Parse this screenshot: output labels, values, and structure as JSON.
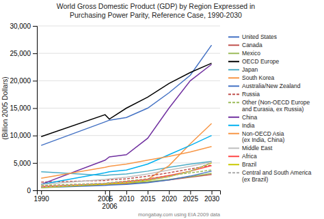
{
  "chart_data": {
    "type": "line",
    "title": "World Gross Domestic Product (GDP) by Region Expressed in\nPurchasing Power Parity, Reference Case, 1990-2030",
    "ylabel": "(Billion 2005 Dollars)",
    "annotations": [
      "mongabay.com using EIA 2009 data"
    ],
    "x": [
      1990,
      2005,
      2006,
      2010,
      2015,
      2020,
      2025,
      2030
    ],
    "series": [
      {
        "name": "United States",
        "color": "#4472C4",
        "line_style": "solid",
        "values": [
          8200,
          12500,
          12800,
          13300,
          15000,
          17800,
          21000,
          26500
        ]
      },
      {
        "name": "Canada",
        "color": "#C0504D",
        "line_style": "solid",
        "values": [
          650,
          1050,
          1100,
          1200,
          1500,
          1900,
          2400,
          2900
        ]
      },
      {
        "name": "Mexico",
        "color": "#9BBB59",
        "line_style": "solid",
        "values": [
          600,
          1100,
          1150,
          1300,
          1600,
          2000,
          2500,
          3100
        ]
      },
      {
        "name": "OECD Europe",
        "color": "#000000",
        "line_style": "solid",
        "values": [
          9800,
          13800,
          13000,
          15000,
          17000,
          19500,
          21500,
          23200
        ]
      },
      {
        "name": "Japan",
        "color": "#4BACC6",
        "line_style": "solid",
        "values": [
          3400,
          2700,
          2800,
          3000,
          3500,
          4200,
          4800,
          5300
        ]
      },
      {
        "name": "South Korea",
        "color": "#F79646",
        "line_style": "solid",
        "values": [
          550,
          1050,
          1100,
          1300,
          2000,
          4500,
          8500,
          12200
        ]
      },
      {
        "name": "Australia/New Zealand",
        "color": "#4472C4",
        "line_style": "solid",
        "values": [
          500,
          900,
          950,
          1100,
          1400,
          1900,
          2600,
          3500
        ]
      },
      {
        "name": "Russia",
        "color": "#C0504D",
        "line_style": "dashed",
        "values": [
          1500,
          1800,
          1900,
          2100,
          2600,
          3200,
          3900,
          4600
        ]
      },
      {
        "name": "Other (Non-OECD Europe\nand Eurasia, ex Russia)",
        "color": "#9BBB59",
        "line_style": "dashed",
        "values": [
          900,
          1300,
          1400,
          1700,
          2100,
          2700,
          3200,
          3700
        ]
      },
      {
        "name": "China",
        "color": "#7030A0",
        "line_style": "solid",
        "values": [
          1100,
          5500,
          6100,
          6500,
          9500,
          15000,
          20000,
          23000
        ]
      },
      {
        "name": "India",
        "color": "#00B0F0",
        "line_style": "solid",
        "values": [
          1100,
          3200,
          3400,
          3700,
          4800,
          6500,
          8200,
          10000
        ]
      },
      {
        "name": "Non-OECD Asia\n(ex India, China)",
        "color": "#F79646",
        "line_style": "solid",
        "values": [
          2200,
          4200,
          4400,
          4800,
          5500,
          6200,
          7000,
          8000
        ]
      },
      {
        "name": "Middle East",
        "color": "#BFBFBF",
        "line_style": "solid",
        "values": [
          1100,
          2000,
          2100,
          2400,
          3000,
          3700,
          4400,
          5200
        ]
      },
      {
        "name": "Africa",
        "color": "#FF4444",
        "line_style": "solid",
        "values": [
          700,
          1200,
          1300,
          1600,
          2000,
          2700,
          3500,
          4500
        ]
      },
      {
        "name": "Brazil",
        "color": "#C8C800",
        "line_style": "solid",
        "values": [
          500,
          1150,
          1200,
          1400,
          1800,
          2500,
          3500,
          5000
        ]
      },
      {
        "name": "Central and South America\n(ex Brazil)",
        "color": "#AAAAAA",
        "line_style": "dashed",
        "values": [
          600,
          1300,
          1350,
          1500,
          1900,
          2500,
          3500,
          5100
        ]
      }
    ],
    "xlim": [
      1989,
      2032
    ],
    "ylim": [
      0,
      30000
    ],
    "xticks": [
      1990,
      2005,
      2006,
      2010,
      2015,
      2020,
      2025,
      2030
    ],
    "yticks": [
      0,
      {
        "value": 5000,
        "label": "5,000"
      },
      {
        "value": 10000,
        "label": "10,000"
      },
      {
        "value": 15000,
        "label": "15,000"
      },
      {
        "value": 20000,
        "label": "20,000"
      },
      {
        "value": 25000,
        "label": "25,000"
      },
      {
        "value": 30000,
        "label": "30,000"
      }
    ],
    "grid": true,
    "legend": "right"
  }
}
